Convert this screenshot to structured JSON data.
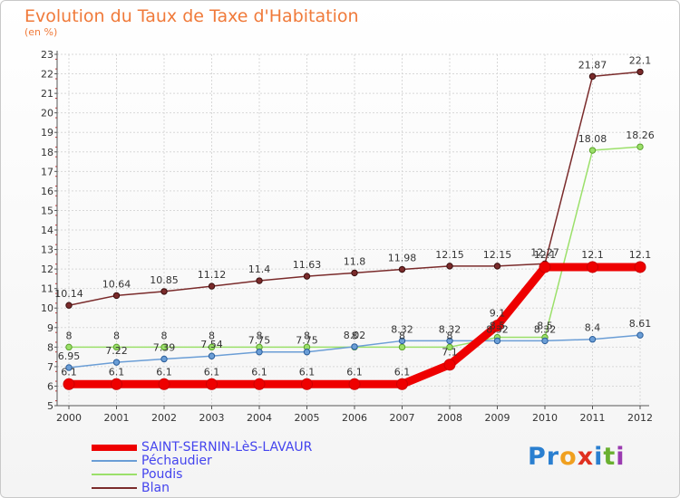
{
  "title": "Evolution du Taux de Taxe d'Habitation",
  "subtitle": "(en %)",
  "logo": {
    "text": "Proxiti",
    "letters": [
      "P",
      "r",
      "o",
      "x",
      "i",
      "t",
      "i"
    ],
    "colors": [
      "#2a7fd0",
      "#2a7fd0",
      "#f0a020",
      "#e03020",
      "#2a7fd0",
      "#6ab030",
      "#9a3ab0"
    ]
  },
  "chart_data": {
    "type": "line",
    "title": "Evolution du Taux de Taxe d'Habitation",
    "subtitle": "(en %)",
    "x": [
      2000,
      2001,
      2002,
      2003,
      2004,
      2005,
      2006,
      2007,
      2008,
      2009,
      2010,
      2011,
      2012
    ],
    "x_tick_labels": [
      "2000",
      "2001",
      "2002",
      "2003",
      "2004",
      "2005",
      "2006",
      "2007",
      "2008",
      "2009",
      "2010",
      "2011",
      "2012"
    ],
    "y_ticks": [
      5,
      6,
      7,
      8,
      9,
      10,
      11,
      12,
      13,
      14,
      15,
      16,
      17,
      18,
      19,
      20,
      21,
      22,
      23
    ],
    "ylim": [
      5,
      23
    ],
    "grid": true,
    "legend_position": "bottom-left",
    "series": [
      {
        "name": "Blan",
        "color": "#7a2b2b",
        "values": [
          10.14,
          10.64,
          10.85,
          11.12,
          11.4,
          11.63,
          11.8,
          11.98,
          12.15,
          12.15,
          12.27,
          21.87,
          22.1
        ],
        "labels": [
          "10.14",
          "10.64",
          "10.85",
          "11.12",
          "11.4",
          "11.63",
          "11.8",
          "11.98",
          "12.15",
          "12.15",
          "12.27",
          "21.87",
          "22.1"
        ]
      },
      {
        "name": "Poudis",
        "color": "#9be06a",
        "values": [
          8,
          8,
          8,
          8,
          8,
          8,
          8,
          8,
          8,
          8.5,
          8.5,
          18.08,
          18.26
        ],
        "labels": [
          "8",
          "8",
          "8",
          "8",
          "8",
          "8",
          "8",
          "8",
          "8",
          "8.5",
          "8.5",
          "18.08",
          "18.26"
        ]
      },
      {
        "name": "Péchaudier",
        "color": "#6b9ed6",
        "values": [
          6.95,
          7.22,
          7.39,
          7.54,
          7.75,
          7.75,
          8.02,
          8.32,
          8.32,
          8.32,
          8.32,
          8.4,
          8.61
        ],
        "labels": [
          "6.95",
          "7.22",
          "7.39",
          "7.54",
          "7.75",
          "7.75",
          "8.02",
          "8.32",
          "8.32",
          "8.32",
          "8.32",
          "8.4",
          "8.61"
        ]
      },
      {
        "name": "SAINT-SERNIN-LèS-LAVAUR",
        "color": "#ee0000",
        "values": [
          6.1,
          6.1,
          6.1,
          6.1,
          6.1,
          6.1,
          6.1,
          6.1,
          7.1,
          9.1,
          12.1,
          12.1,
          12.1
        ],
        "labels": [
          "6.1",
          "6.1",
          "6.1",
          "6.1",
          "6.1",
          "6.1",
          "6.1",
          "6.1",
          "7.1",
          "9.1",
          "12.1",
          "12.1",
          "12.1"
        ]
      }
    ],
    "legend": [
      {
        "name": "SAINT-SERNIN-LèS-LAVAUR",
        "color": "#ee0000",
        "text_color": "#4444ee",
        "width": 7
      },
      {
        "name": "Péchaudier",
        "color": "#6b9ed6",
        "text_color": "#4444ee",
        "width": 2
      },
      {
        "name": "Poudis",
        "color": "#9be06a",
        "text_color": "#4444ee",
        "width": 2
      },
      {
        "name": "Blan",
        "color": "#7a2b2b",
        "text_color": "#4444ee",
        "width": 2
      }
    ]
  }
}
